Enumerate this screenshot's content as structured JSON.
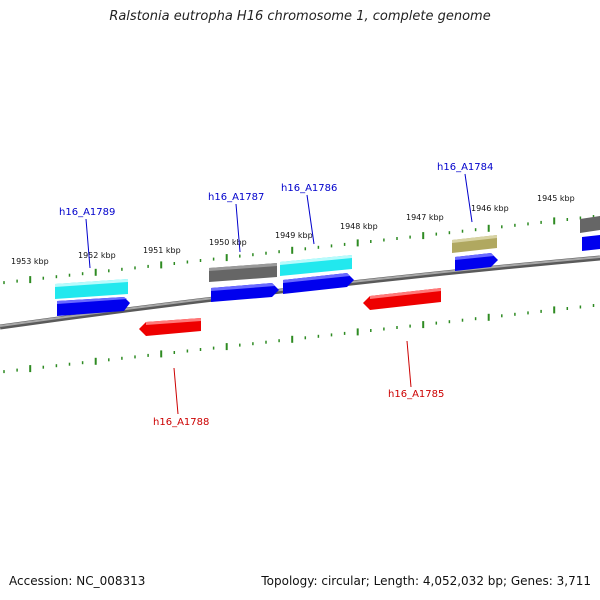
{
  "title": "Ralstonia eutropha H16 chromosome 1, complete genome",
  "footer": {
    "accession": "Accession: NC_008313",
    "summary": "Topology: circular; Length: 4,052,032 bp; Genes: 3,711"
  },
  "colors": {
    "backbone": "#808080",
    "tick": "#2e8b22",
    "forward_label": "#0000cc",
    "reverse_label": "#cc0000",
    "kbp_text": "#111111",
    "gene_blue": "#0000ee",
    "gene_cyan": "#22e8ee",
    "gene_gray": "#666666",
    "gene_olive": "#b0a860",
    "gene_red": "#ee0000"
  },
  "kbp_labels": [
    "1953 kbp",
    "1952 kbp",
    "1951 kbp",
    "1950 kbp",
    "1949 kbp",
    "1948 kbp",
    "1947 kbp",
    "1946 kbp",
    "1945 kbp"
  ],
  "gene_labels": {
    "forward": [
      "h16_A1789",
      "h16_A1787",
      "h16_A1786",
      "h16_A1784"
    ],
    "reverse": [
      "h16_A1788",
      "h16_A1785"
    ]
  }
}
